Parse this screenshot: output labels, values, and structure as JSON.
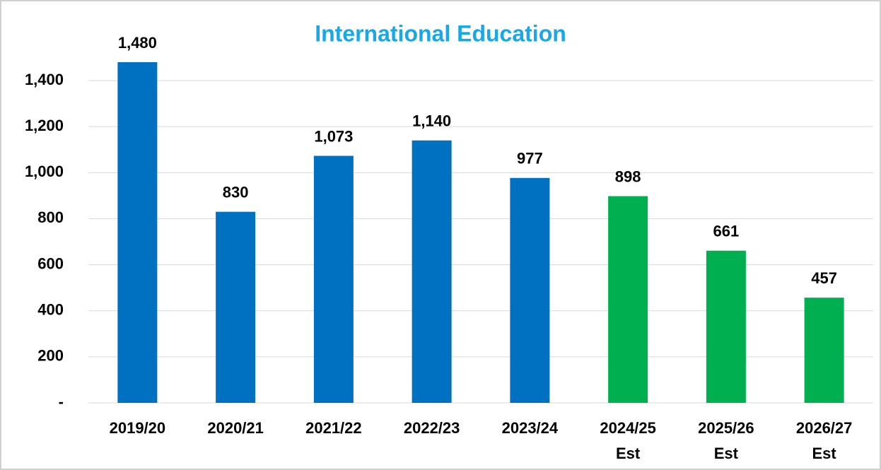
{
  "chart_data": {
    "type": "bar",
    "title": "International Education",
    "categories": [
      "2019/20",
      "2020/21",
      "2021/22",
      "2022/23",
      "2023/24",
      "2024/25\nEst",
      "2025/26\nEst",
      "2026/27\nEst"
    ],
    "values": [
      1480,
      830,
      1073,
      1140,
      977,
      898,
      661,
      457
    ],
    "value_labels": [
      "1,480",
      "830",
      "1,073",
      "1,140",
      "977",
      "898",
      "661",
      "457"
    ],
    "colors": [
      "#0070c0",
      "#0070c0",
      "#0070c0",
      "#0070c0",
      "#0070c0",
      "#00b050",
      "#00b050",
      "#00b050"
    ],
    "ylim": [
      0,
      1400
    ],
    "yticks": [
      {
        "value": 0,
        "label": "-"
      },
      200,
      400,
      600,
      800,
      {
        "value": 1000,
        "label": "1,000"
      },
      {
        "value": 1200,
        "label": "1,200"
      },
      {
        "value": 1400,
        "label": "1,400"
      }
    ],
    "grid": true
  }
}
